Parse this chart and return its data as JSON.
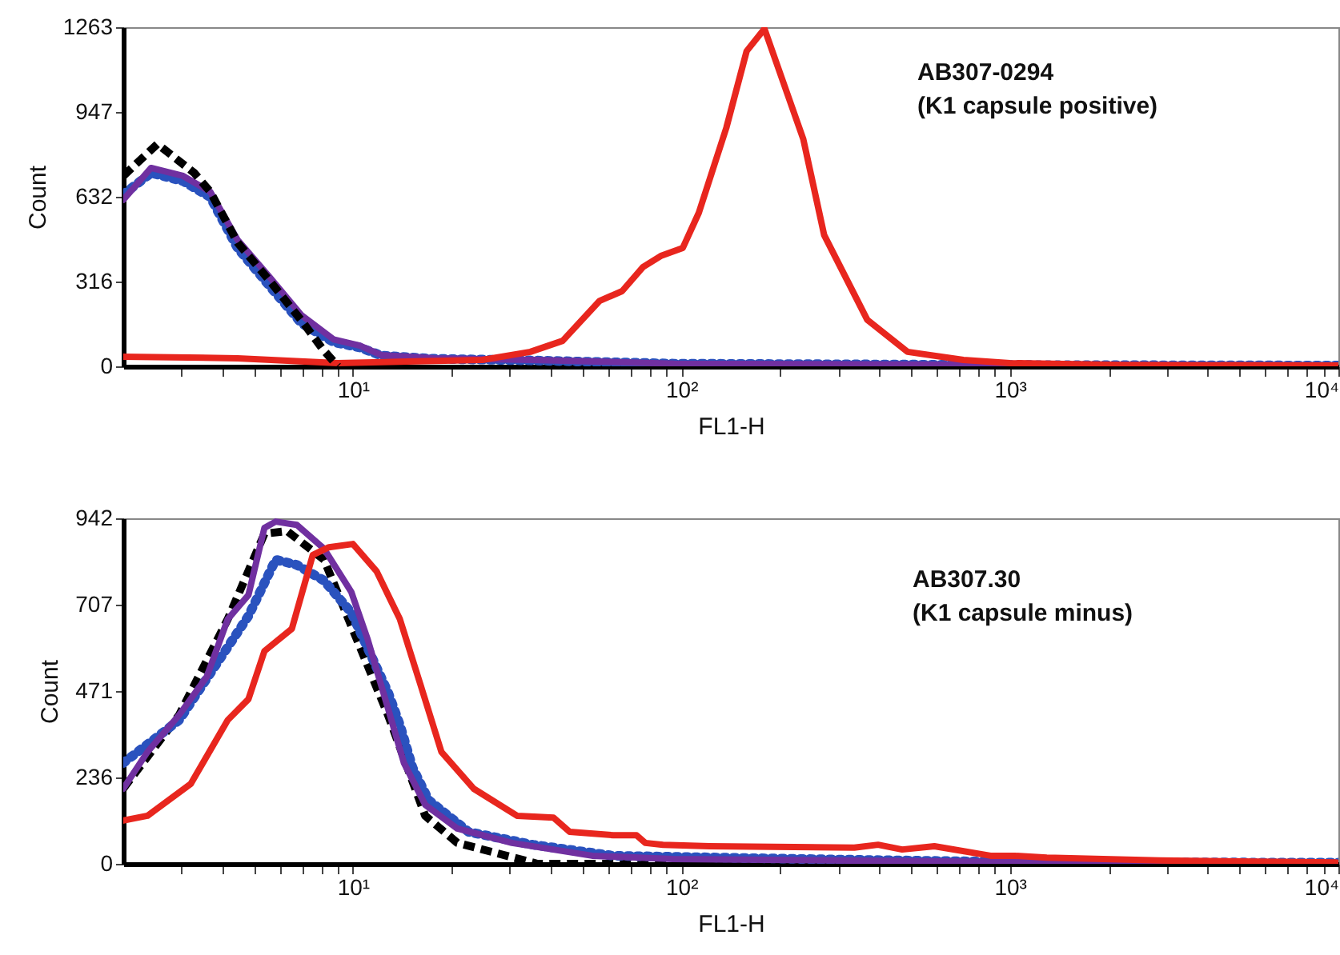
{
  "chart_data": [
    {
      "type": "line",
      "xlabel": "FL1-H",
      "ylabel": "Count",
      "log": "x",
      "xlim": [
        2,
        10000
      ],
      "ylim": [
        0,
        1263
      ],
      "yticks": [
        0,
        316,
        632,
        947,
        1263
      ],
      "xticks": [
        {
          "value": 3,
          "label": null
        },
        {
          "value": 4,
          "label": null
        },
        {
          "value": 5,
          "label": null
        },
        {
          "value": 6,
          "label": null
        },
        {
          "value": 7,
          "label": null
        },
        {
          "value": 8,
          "label": null
        },
        {
          "value": 9,
          "label": null
        },
        {
          "value": 10,
          "label": "10¹"
        },
        {
          "value": 20,
          "label": null
        },
        {
          "value": 30,
          "label": null
        },
        {
          "value": 40,
          "label": null
        },
        {
          "value": 50,
          "label": null
        },
        {
          "value": 60,
          "label": null
        },
        {
          "value": 70,
          "label": null
        },
        {
          "value": 80,
          "label": null
        },
        {
          "value": 90,
          "label": null
        },
        {
          "value": 100,
          "label": "10²"
        },
        {
          "value": 200,
          "label": null
        },
        {
          "value": 300,
          "label": null
        },
        {
          "value": 400,
          "label": null
        },
        {
          "value": 500,
          "label": null
        },
        {
          "value": 600,
          "label": null
        },
        {
          "value": 700,
          "label": null
        },
        {
          "value": 800,
          "label": null
        },
        {
          "value": 900,
          "label": null
        },
        {
          "value": 1000,
          "label": "10³"
        },
        {
          "value": 2000,
          "label": null
        },
        {
          "value": 3000,
          "label": null
        },
        {
          "value": 4000,
          "label": null
        },
        {
          "value": 5000,
          "label": null
        },
        {
          "value": 6000,
          "label": null
        },
        {
          "value": 7000,
          "label": null
        },
        {
          "value": 8000,
          "label": null
        },
        {
          "value": 9000,
          "label": null
        },
        {
          "value": 10000,
          "label": "10⁴"
        }
      ],
      "grid": false,
      "annotations": [
        "AB307-0294",
        "(K1 capsule positive)"
      ],
      "series": [
        {
          "color": "#2a52be",
          "line_style": "dotted",
          "x": [
            2,
            2.43,
            3.04,
            3.68,
            4.46,
            5.57,
            6.98,
            8.74,
            10.5,
            12.2,
            17.7,
            34.7,
            95,
            1000,
            10000
          ],
          "values": [
            640,
            720,
            690,
            630,
            440,
            300,
            160,
            90,
            70,
            40,
            28,
            22,
            10,
            5,
            3
          ]
        },
        {
          "color": "#7030a0",
          "line_style": "solid",
          "x": [
            2,
            2.43,
            3.04,
            3.68,
            4.46,
            5.57,
            6.98,
            8.74,
            10.5,
            12.2,
            17.7,
            34.7,
            95,
            1000,
            10000
          ],
          "values": [
            620,
            739,
            709,
            650,
            470,
            333,
            190,
            100,
            77,
            42,
            30,
            24,
            10,
            5,
            3
          ]
        },
        {
          "color": "#e8261e",
          "line_style": "solid",
          "x": [
            2,
            4.46,
            9,
            24.8,
            34.7,
            43.5,
            56.4,
            66,
            76.4,
            86.5,
            101,
            113,
            137,
            158,
            179,
            235,
            272,
            368,
            488,
            722,
            1000,
            2220,
            10000
          ],
          "values": [
            36,
            30,
            12,
            24,
            54,
            95,
            244,
            280,
            370,
            411,
            441,
            572,
            888,
            1174,
            1257,
            846,
            489,
            173,
            54,
            24,
            12,
            5,
            3
          ]
        },
        {
          "color": "#000000",
          "line_style": "dashed",
          "x": [
            2,
            2.54,
            2.85,
            3.29,
            3.68,
            4.46,
            5.57,
            6.98,
            8.08,
            9
          ],
          "values": [
            709,
            828,
            780,
            720,
            650,
            460,
            320,
            170,
            65,
            0
          ]
        }
      ]
    },
    {
      "type": "line",
      "xlabel": "FL1-H",
      "ylabel": "Count",
      "log": "x",
      "xlim": [
        2,
        10000
      ],
      "ylim": [
        0,
        942
      ],
      "yticks": [
        0,
        236,
        471,
        707,
        942
      ],
      "xticks": [
        {
          "value": 3,
          "label": null
        },
        {
          "value": 4,
          "label": null
        },
        {
          "value": 5,
          "label": null
        },
        {
          "value": 6,
          "label": null
        },
        {
          "value": 7,
          "label": null
        },
        {
          "value": 8,
          "label": null
        },
        {
          "value": 9,
          "label": null
        },
        {
          "value": 10,
          "label": "10¹"
        },
        {
          "value": 20,
          "label": null
        },
        {
          "value": 30,
          "label": null
        },
        {
          "value": 40,
          "label": null
        },
        {
          "value": 50,
          "label": null
        },
        {
          "value": 60,
          "label": null
        },
        {
          "value": 70,
          "label": null
        },
        {
          "value": 80,
          "label": null
        },
        {
          "value": 90,
          "label": null
        },
        {
          "value": 100,
          "label": "10²"
        },
        {
          "value": 200,
          "label": null
        },
        {
          "value": 300,
          "label": null
        },
        {
          "value": 400,
          "label": null
        },
        {
          "value": 500,
          "label": null
        },
        {
          "value": 600,
          "label": null
        },
        {
          "value": 700,
          "label": null
        },
        {
          "value": 800,
          "label": null
        },
        {
          "value": 900,
          "label": null
        },
        {
          "value": 1000,
          "label": "10³"
        },
        {
          "value": 2000,
          "label": null
        },
        {
          "value": 3000,
          "label": null
        },
        {
          "value": 4000,
          "label": null
        },
        {
          "value": 5000,
          "label": null
        },
        {
          "value": 6000,
          "label": null
        },
        {
          "value": 7000,
          "label": null
        },
        {
          "value": 8000,
          "label": null
        },
        {
          "value": 9000,
          "label": null
        },
        {
          "value": 10000,
          "label": "10⁴"
        }
      ],
      "grid": false,
      "annotations": [
        "AB307.30",
        "(K1 capsule minus)"
      ],
      "series": [
        {
          "color": "#000000",
          "line_style": "dashed",
          "x": [
            2,
            2.96,
            4.16,
            5.38,
            6.31,
            8.17,
            12.8,
            16.6,
            20.8,
            36.5,
            10000
          ],
          "values": [
            205,
            406,
            667,
            900,
            907,
            829,
            405,
            131,
            57,
            0,
            0
          ]
        },
        {
          "color": "#2a52be",
          "line_style": "dotted",
          "x": [
            2,
            2.96,
            4.81,
            5.82,
            6.75,
            8.17,
            9.89,
            12.8,
            13.9,
            15.2,
            17,
            22.5,
            35.3,
            62,
            239,
            1000,
            10000
          ],
          "values": [
            275,
            392,
            676,
            829,
            815,
            772,
            685,
            467,
            379,
            262,
            174,
            87,
            52,
            22,
            13,
            5,
            3
          ]
        },
        {
          "color": "#7030a0",
          "line_style": "solid",
          "x": [
            2,
            2.37,
            2.96,
            3.59,
            4.16,
            4.81,
            5.38,
            5.82,
            6.75,
            8.17,
            9.89,
            11.1,
            12.8,
            14.3,
            16.6,
            20.8,
            30.5,
            53.5,
            94,
            1000,
            10000
          ],
          "values": [
            205,
            305,
            406,
            510,
            667,
            733,
            916,
            933,
            924,
            859,
            741,
            611,
            423,
            275,
            161,
            96,
            57,
            22,
            13,
            5,
            3
          ]
        },
        {
          "color": "#e8261e",
          "line_style": "solid",
          "x": [
            2,
            2.37,
            3.21,
            4.16,
            4.81,
            5.38,
            6.52,
            7.55,
            8.45,
            10,
            11.8,
            13.9,
            16,
            18.6,
            23.3,
            31.6,
            40.8,
            45.7,
            62,
            73,
            77.6,
            87.9,
            122,
            336,
            397,
            470,
            589,
            873,
            1035,
            1295,
            2850,
            9840
          ],
          "values": [
            118,
            131,
            218,
            392,
            449,
            580,
            641,
            842,
            863,
            872,
            798,
            667,
            493,
            305,
            205,
            131,
            126,
            87,
            78,
            78,
            57,
            52,
            48,
            44,
            52,
            39,
            48,
            22,
            22,
            17,
            9,
            4
          ]
        }
      ]
    }
  ]
}
